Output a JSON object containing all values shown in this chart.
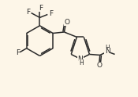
{
  "bg_color": "#fdf6e8",
  "line_color": "#2a2a2a",
  "text_color": "#2a2a2a",
  "lw": 1.1,
  "font_size": 6.5,
  "fig_width": 1.75,
  "fig_height": 1.24,
  "dpi": 100,
  "xlim": [
    0.0,
    1.75
  ],
  "ylim": [
    0.0,
    1.24
  ]
}
